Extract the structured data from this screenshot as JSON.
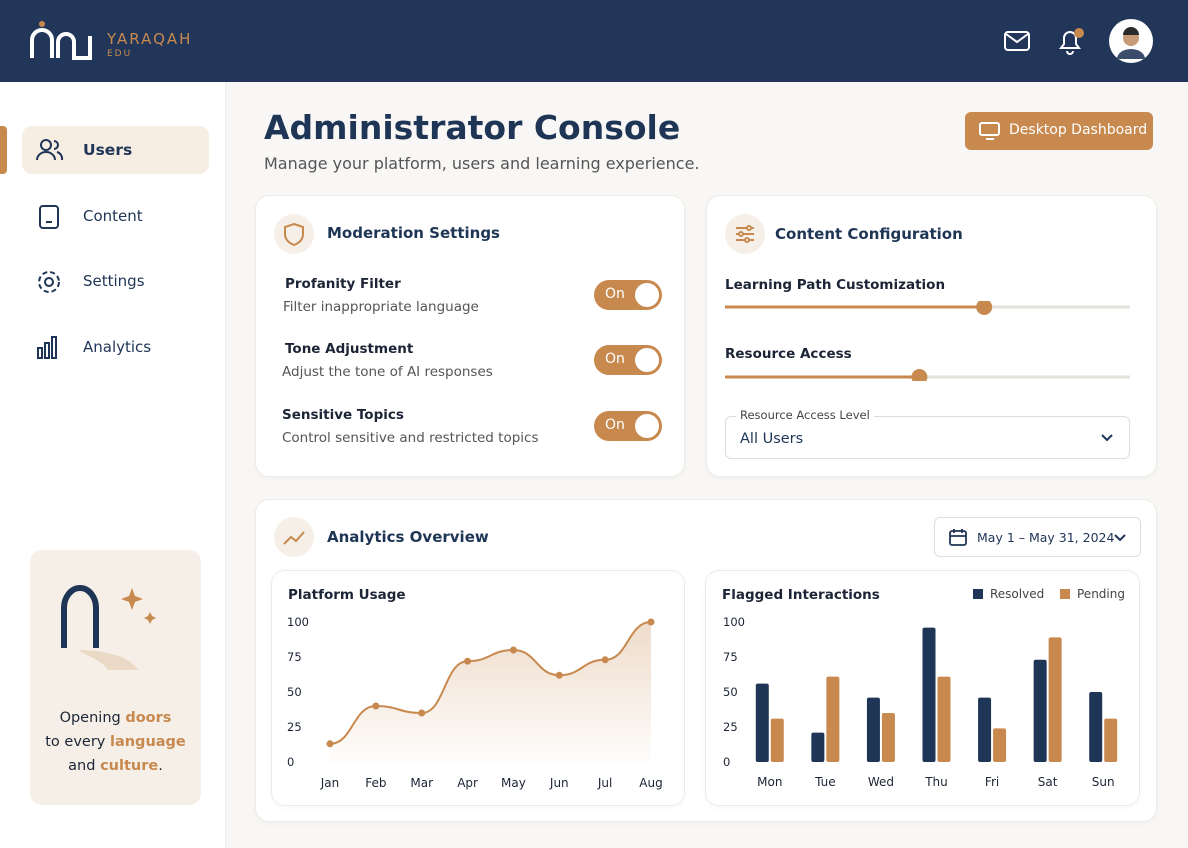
{
  "header": {
    "brand": "YARAQAH",
    "brand_sub": "EDU"
  },
  "sidebar": {
    "nav": [
      "Users",
      "Content",
      "Settings",
      "Analytics"
    ],
    "promo": [
      "Opening",
      "doors",
      "to every",
      "language",
      "and",
      "culture",
      "."
    ]
  },
  "page": {
    "title": "Administrator Console",
    "subtitle": "Manage your platform, users and learning experience.",
    "button": "Desktop Dashboard"
  },
  "moderation": {
    "title": "Moderation Settings",
    "items": [
      {
        "label": "Profanity Filter",
        "desc": "Filter inappropriate language",
        "state": "On"
      },
      {
        "label": "Tone Adjustment",
        "desc": "Adjust the tone of AI responses",
        "state": "On"
      },
      {
        "label": "Sensitive Topics",
        "desc": "Control sensitive and restricted topics",
        "state": "On"
      }
    ]
  },
  "content_config": {
    "title": "Content Configuration",
    "sliders": [
      {
        "label": "Learning Path Customization",
        "value": 64
      },
      {
        "label": "Resource Access",
        "value": 48
      }
    ],
    "select": {
      "label": "Resource Access Level",
      "value": "All Users"
    }
  },
  "analytics": {
    "title": "Analytics Overview",
    "date_range": "May 1 – May 31, 2024"
  },
  "chart_data": [
    {
      "type": "line",
      "title": "Platform Usage",
      "categories": [
        "Jan",
        "Feb",
        "Mar",
        "Apr",
        "May",
        "Jun",
        "Jul",
        "Aug"
      ],
      "values": [
        13,
        40,
        35,
        72,
        80,
        62,
        73,
        100
      ],
      "color": "#c8894f",
      "ylim": [
        0,
        100
      ],
      "yticks": [
        0,
        25,
        50,
        75,
        100
      ]
    },
    {
      "type": "bar",
      "title": "Flagged Interactions",
      "categories": [
        "Mon",
        "Tue",
        "Wed",
        "Thu",
        "Fri",
        "Sat",
        "Sun"
      ],
      "series": [
        {
          "name": "Resolved",
          "color": "#1f3556",
          "values": [
            56,
            21,
            46,
            96,
            46,
            73,
            50
          ]
        },
        {
          "name": "Pending",
          "color": "#c8894f",
          "values": [
            31,
            61,
            35,
            61,
            24,
            89,
            31
          ]
        }
      ],
      "ylim": [
        0,
        100
      ],
      "yticks": [
        0,
        25,
        50,
        75,
        100
      ],
      "legend": "top-right"
    }
  ]
}
